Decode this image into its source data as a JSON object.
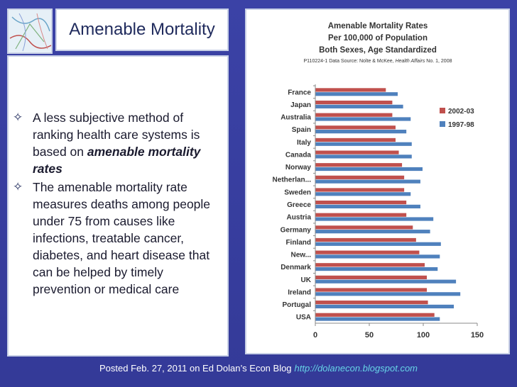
{
  "slide": {
    "title": "Amenable Mortality",
    "logo_icon": "abstract-network-logo-icon",
    "bullets": [
      {
        "text_before": "A less subjective method of ranking health care systems is based on ",
        "emphasis": "amenable mortality rates",
        "text_after": ""
      },
      {
        "text_before": "The amenable mortality rate measures deaths among people under 75 from causes like infections, treatable cancer, diabetes, and heart disease that can be helped by timely prevention or medical care",
        "emphasis": "",
        "text_after": ""
      }
    ],
    "bullet_symbol": "✧",
    "footer_text": "Posted Feb. 27, 2011 on Ed Dolan’s Econ Blog",
    "footer_link": "http://dolanecon.blogspot.com"
  },
  "chart_data": {
    "type": "bar",
    "orientation": "horizontal",
    "title": "Amenable Mortality Rates",
    "subtitle_lines": [
      "Per 100,000 of Population",
      "Both Sexes, Age Standardized"
    ],
    "source_prefix": "P110224-1 Data Source: Nolte & McKee, ",
    "source_journal": "Health Affairs",
    "source_suffix": " No. 1, 2008",
    "categories": [
      "France",
      "Japan",
      "Australia",
      "Spain",
      "Italy",
      "Canada",
      "Norway",
      "Netherlan...",
      "Sweden",
      "Greece",
      "Austria",
      "Germany",
      "Finland",
      "New...",
      "Denmark",
      "UK",
      "Ireland",
      "Portugal",
      "USA"
    ],
    "series": [
      {
        "name": "2002-03",
        "color": "#c0504d",
        "values": [
          65,
          71,
          71,
          74,
          74,
          77,
          80,
          82,
          82,
          84,
          84,
          90,
          93,
          96,
          101,
          103,
          103,
          104,
          110
        ]
      },
      {
        "name": "1997-98",
        "color": "#4f81bd",
        "values": [
          76,
          81,
          88,
          84,
          89,
          89,
          99,
          97,
          88,
          97,
          109,
          106,
          116,
          115,
          113,
          130,
          134,
          128,
          115
        ]
      }
    ],
    "xlim": [
      0,
      150
    ],
    "xticks": [
      "0",
      "50",
      "100",
      "150"
    ],
    "grid": false,
    "legend_position": "right"
  }
}
